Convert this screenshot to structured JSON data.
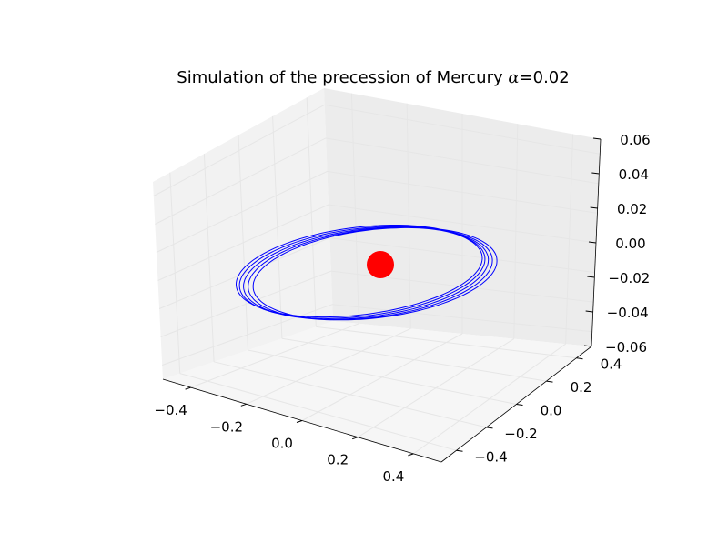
{
  "chart_data": {
    "type": "line3d",
    "title": "Simulation of the precession of Mercury α=0.02",
    "title_parts": {
      "prefix": "Simulation of the precession of Mercury ",
      "symbol": "α",
      "suffix": "=0.02"
    },
    "x_ticks": [
      "−0.4",
      "−0.2",
      "0.0",
      "0.2",
      "0.4"
    ],
    "y_ticks": [
      "−0.4",
      "−0.2",
      "0.0",
      "0.2",
      "0.4"
    ],
    "z_ticks": [
      "−0.06",
      "−0.04",
      "−0.02",
      "0.00",
      "0.02",
      "0.04",
      "0.06"
    ],
    "xlim": [
      -0.5,
      0.5
    ],
    "ylim": [
      -0.5,
      0.5
    ],
    "zlim": [
      -0.065,
      0.065
    ],
    "grid": true,
    "series": [
      {
        "kind": "orbit",
        "color": "#0000ff",
        "orbits": 5,
        "semi_major": 0.39,
        "eccentricity": 0.2,
        "precession_per_orbit_deg": 12,
        "inclination_slope": 0.12
      },
      {
        "kind": "sun",
        "color": "#ff0000",
        "x": 0.0,
        "y": 0.0,
        "z": 0.0
      }
    ]
  }
}
